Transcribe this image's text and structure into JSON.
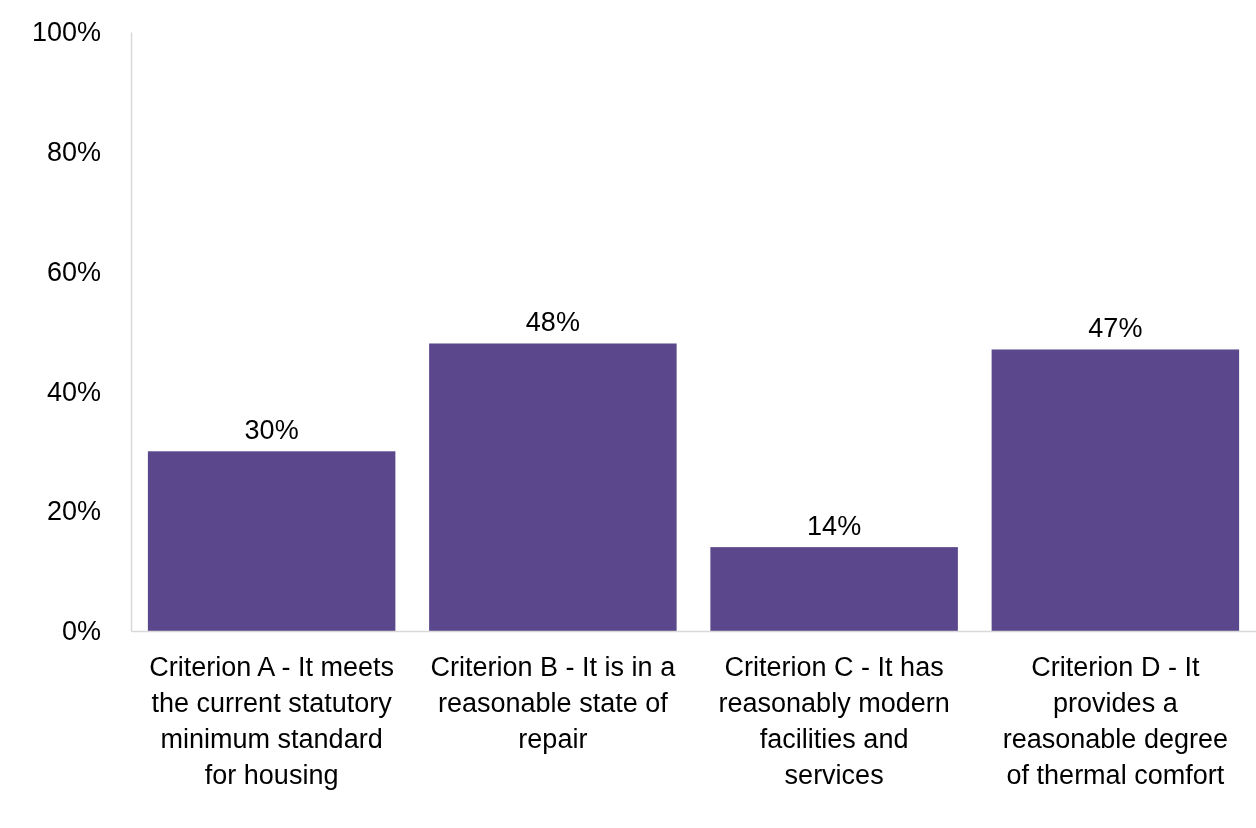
{
  "chart_data": {
    "type": "bar",
    "categories": [
      "Criterion A - It meets the current statutory minimum standard for housing",
      "Criterion B - It is in a reasonable state of repair",
      "Criterion C - It has reasonably modern facilities and services",
      "Criterion D - It provides a reasonable degree of thermal comfort"
    ],
    "values": [
      30,
      48,
      14,
      47
    ],
    "color": "#5b478b",
    "ylim": [
      0,
      100
    ],
    "yticks": [
      {
        "value": 0,
        "label": "0%"
      },
      {
        "value": 20,
        "label": "20%"
      },
      {
        "value": 40,
        "label": "40%"
      },
      {
        "value": 60,
        "label": "60%"
      },
      {
        "value": 80,
        "label": "80%"
      },
      {
        "value": 100,
        "label": "100%"
      }
    ],
    "value_labels": [
      "30%",
      "48%",
      "14%",
      "47%"
    ],
    "grid": false
  }
}
